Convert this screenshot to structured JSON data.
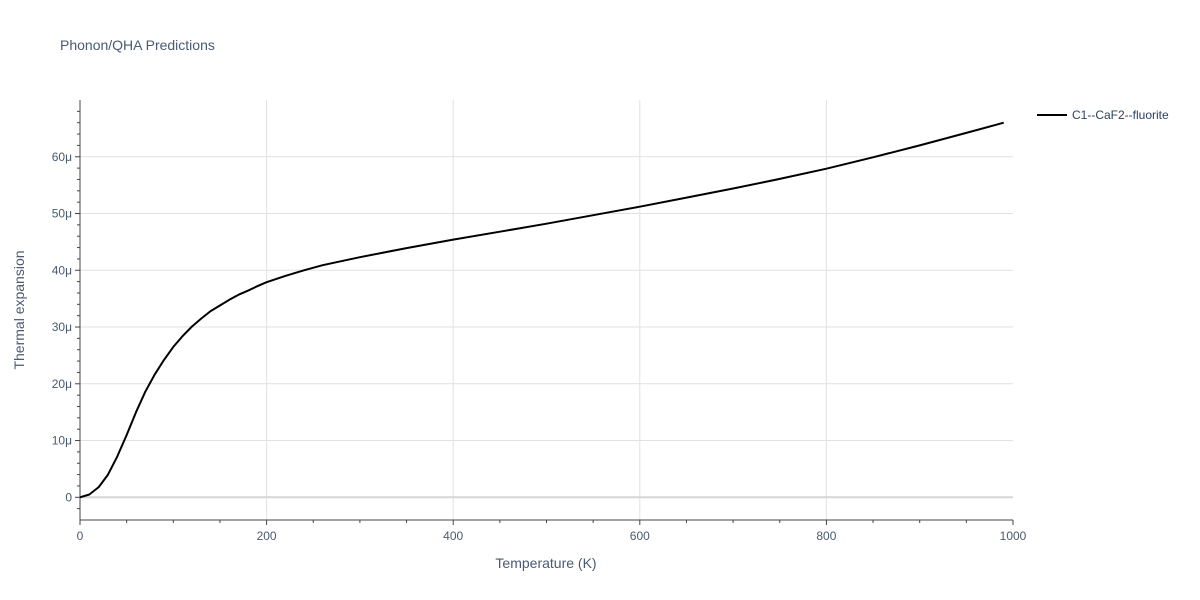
{
  "chart_data": {
    "type": "line",
    "title": "Phonon/QHA Predictions",
    "xlabel": "Temperature (K)",
    "ylabel": "Thermal expansion",
    "xlim": [
      0,
      1000
    ],
    "ylim": [
      -4,
      70
    ],
    "x_ticks": [
      0,
      200,
      400,
      600,
      800,
      1000
    ],
    "x_tick_labels": [
      "0",
      "200",
      "400",
      "600",
      "800",
      "1000"
    ],
    "y_ticks": [
      0,
      10,
      20,
      30,
      40,
      50,
      60
    ],
    "y_tick_labels": [
      "0",
      "10μ",
      "20μ",
      "30μ",
      "40μ",
      "50μ",
      "60μ"
    ],
    "grid": true,
    "legend_position": "top-right",
    "series": [
      {
        "name": "C1--CaF2--fluorite",
        "color": "#000000",
        "x": [
          0,
          10,
          20,
          30,
          40,
          50,
          60,
          70,
          80,
          90,
          100,
          110,
          120,
          130,
          140,
          150,
          160,
          170,
          180,
          190,
          200,
          220,
          240,
          260,
          280,
          300,
          350,
          400,
          450,
          500,
          550,
          600,
          650,
          700,
          750,
          800,
          850,
          900,
          950,
          990
        ],
        "y": [
          0,
          0.5,
          1.8,
          4.0,
          7.2,
          11.0,
          15.0,
          18.6,
          21.6,
          24.2,
          26.5,
          28.4,
          30.1,
          31.5,
          32.8,
          33.8,
          34.8,
          35.7,
          36.4,
          37.2,
          37.9,
          39.0,
          40.0,
          40.9,
          41.6,
          42.3,
          43.9,
          45.4,
          46.8,
          48.2,
          49.7,
          51.2,
          52.8,
          54.4,
          56.1,
          57.9,
          59.9,
          62.0,
          64.2,
          66.0
        ]
      }
    ]
  }
}
